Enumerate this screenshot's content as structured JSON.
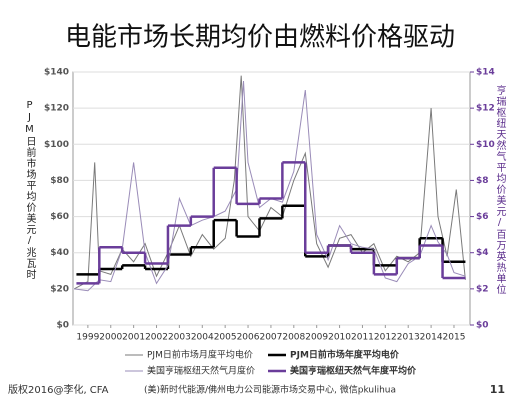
{
  "chart_data": {
    "type": "line",
    "title": "电能市场长期均价由燃料价格驱动",
    "ylabel": "PJM日前市场平均价美元/兆瓦时",
    "y2label": "亨瑞枢纽天然气平均价美元/百万英热单位",
    "xlim": [
      1998.35,
      2015.7
    ],
    "xticks": [
      1999,
      2000,
      2001,
      2002,
      2003,
      2004,
      2005,
      2006,
      2007,
      2008,
      2009,
      2010,
      2011,
      2012,
      2013,
      2014,
      2015
    ],
    "ylim": [
      0,
      140
    ],
    "yticks": [
      {
        "value": 0,
        "label": "$0"
      },
      {
        "value": 20,
        "label": "$20"
      },
      {
        "value": 40,
        "label": "$40"
      },
      {
        "value": 60,
        "label": "$60"
      },
      {
        "value": 80,
        "label": "$80"
      },
      {
        "value": 100,
        "label": "$100"
      },
      {
        "value": 120,
        "label": "$120"
      },
      {
        "value": 140,
        "label": "$140"
      }
    ],
    "y2lim": [
      0,
      14
    ],
    "y2ticks": [
      {
        "value": 0,
        "label": "$0"
      },
      {
        "value": 2,
        "label": "$2"
      },
      {
        "value": 4,
        "label": "$4"
      },
      {
        "value": 6,
        "label": "$6"
      },
      {
        "value": 8,
        "label": "$8"
      },
      {
        "value": 10,
        "label": "$10"
      },
      {
        "value": 12,
        "label": "$12"
      },
      {
        "value": 14,
        "label": "$14"
      }
    ],
    "grid": true,
    "series": [
      {
        "name": "PJM日前市场月度平均电价",
        "color": "#7a7a7a",
        "line_width": 1,
        "step": false,
        "x": [
          1998.4,
          1999.0,
          1999.3,
          1999.5,
          2000.0,
          2000.5,
          2001.0,
          2001.5,
          2002.0,
          2002.5,
          2003.0,
          2003.5,
          2004.0,
          2004.5,
          2005.0,
          2005.4,
          2005.7,
          2006.0,
          2006.5,
          2007.0,
          2007.5,
          2008.0,
          2008.5,
          2009.0,
          2009.5,
          2010.0,
          2010.5,
          2011.0,
          2011.5,
          2012.0,
          2012.5,
          2013.0,
          2013.5,
          2014.0,
          2014.3,
          2014.7,
          2015.1,
          2015.5
        ],
        "values": [
          20,
          24,
          90,
          30,
          28,
          42,
          35,
          45,
          27,
          40,
          55,
          38,
          50,
          42,
          48,
          80,
          138,
          60,
          52,
          65,
          60,
          80,
          95,
          45,
          32,
          48,
          50,
          40,
          45,
          30,
          38,
          35,
          40,
          120,
          60,
          38,
          75,
          25
        ]
      },
      {
        "name": "PJM日前市场年度平均电价",
        "color": "#000000",
        "line_width": 2.5,
        "step": true,
        "x": [
          1999,
          2000,
          2001,
          2002,
          2003,
          2004,
          2005,
          2006,
          2007,
          2008,
          2009,
          2010,
          2011,
          2012,
          2013,
          2014,
          2015
        ],
        "values": [
          28,
          31,
          33,
          31,
          39,
          43,
          58,
          49,
          59,
          66,
          38,
          44,
          42,
          33,
          37,
          48,
          35
        ]
      },
      {
        "name": "美国亨瑞枢纽天然气月度价",
        "color": "#9a8cb8",
        "line_width": 1,
        "step": false,
        "axis": "y2",
        "x": [
          1998.4,
          1999.0,
          1999.5,
          2000.0,
          2000.5,
          2001.0,
          2001.5,
          2002.0,
          2002.5,
          2003.0,
          2003.5,
          2004.0,
          2004.5,
          2005.0,
          2005.5,
          2005.8,
          2006.0,
          2006.5,
          2007.0,
          2007.5,
          2008.0,
          2008.5,
          2009.0,
          2009.5,
          2010.0,
          2010.5,
          2011.0,
          2011.5,
          2012.0,
          2012.5,
          2013.0,
          2013.5,
          2014.0,
          2014.3,
          2014.7,
          2015.0,
          2015.5
        ],
        "values": [
          2.0,
          1.9,
          2.5,
          2.4,
          4.2,
          9.0,
          4.0,
          2.3,
          3.3,
          7.0,
          5.5,
          5.8,
          6.0,
          6.3,
          7.5,
          13.5,
          9.0,
          6.5,
          7.0,
          6.8,
          8.5,
          13.0,
          5.0,
          3.6,
          5.5,
          4.5,
          4.3,
          4.2,
          2.6,
          2.4,
          3.4,
          3.8,
          5.5,
          4.6,
          3.9,
          2.9,
          2.7
        ]
      },
      {
        "name": "美国亨瑞枢纽天然气年度平均价",
        "color": "#6a3d9a",
        "line_width": 2.5,
        "step": true,
        "axis": "y2",
        "x": [
          1999,
          2000,
          2001,
          2002,
          2003,
          2004,
          2005,
          2006,
          2007,
          2008,
          2009,
          2010,
          2011,
          2012,
          2013,
          2014,
          2015
        ],
        "values": [
          2.3,
          4.3,
          4.0,
          3.4,
          5.5,
          6.0,
          8.7,
          6.7,
          7.0,
          9.0,
          4.0,
          4.4,
          4.0,
          2.8,
          3.7,
          4.4,
          2.6
        ]
      }
    ]
  },
  "footer": {
    "copyright": "版权2016@李化, CFA",
    "source": "(美)新时代能源/佛州电力公司能源市场交易中心, 微信pkulihua",
    "page": "11"
  }
}
